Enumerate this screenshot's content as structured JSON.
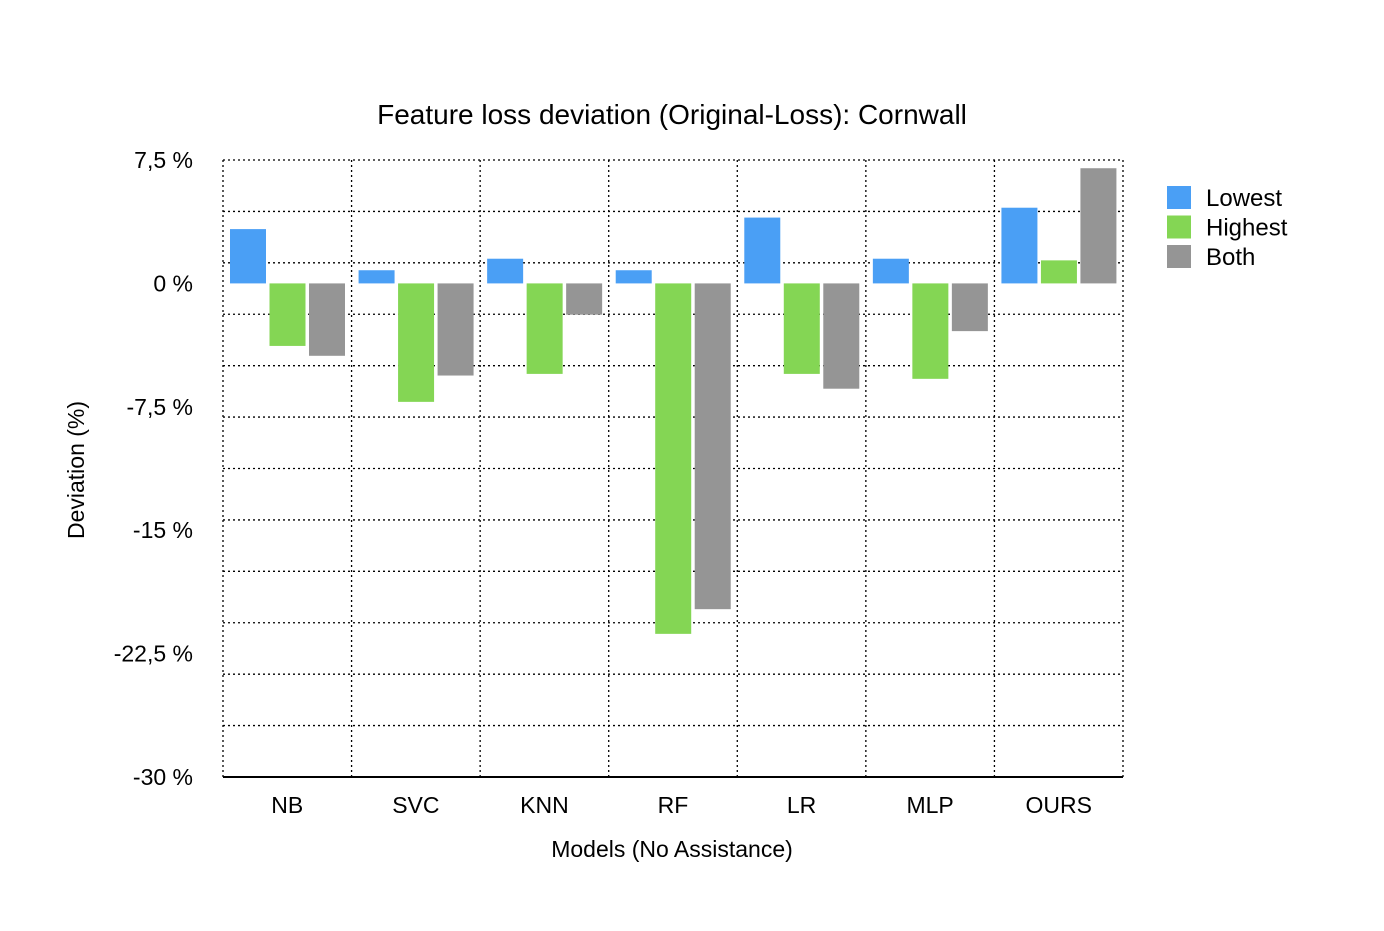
{
  "chart_data": {
    "type": "bar",
    "title": "Feature loss deviation (Original-Loss): Cornwall",
    "xlabel": "Models (No Assistance)",
    "ylabel": "Deviation (%)",
    "categories": [
      "NB",
      "SVC",
      "KNN",
      "RF",
      "LR",
      "MLP",
      "OURS"
    ],
    "series": [
      {
        "name": "Lowest",
        "color": "#4a9ff5",
        "values": [
          3.3,
          0.8,
          1.5,
          0.8,
          4.0,
          1.5,
          4.6
        ]
      },
      {
        "name": "Highest",
        "color": "#84d654",
        "values": [
          -3.8,
          -7.2,
          -5.5,
          -21.3,
          -5.5,
          -5.8,
          1.4
        ]
      },
      {
        "name": "Both",
        "color": "#959595",
        "values": [
          -4.4,
          -5.6,
          -1.9,
          -19.8,
          -6.4,
          -2.9,
          7.0
        ]
      }
    ],
    "ylim": [
      -30,
      7.5
    ],
    "y_ticks": [
      7.5,
      0,
      -7.5,
      -15,
      -22.5,
      -30
    ],
    "y_tick_labels": [
      "7,5 %",
      "0 %",
      "-7,5 %",
      "-15 %",
      "-22,5 %",
      "-30 %"
    ],
    "grid": true,
    "grid_style": "dotted",
    "legend_position": "right"
  }
}
